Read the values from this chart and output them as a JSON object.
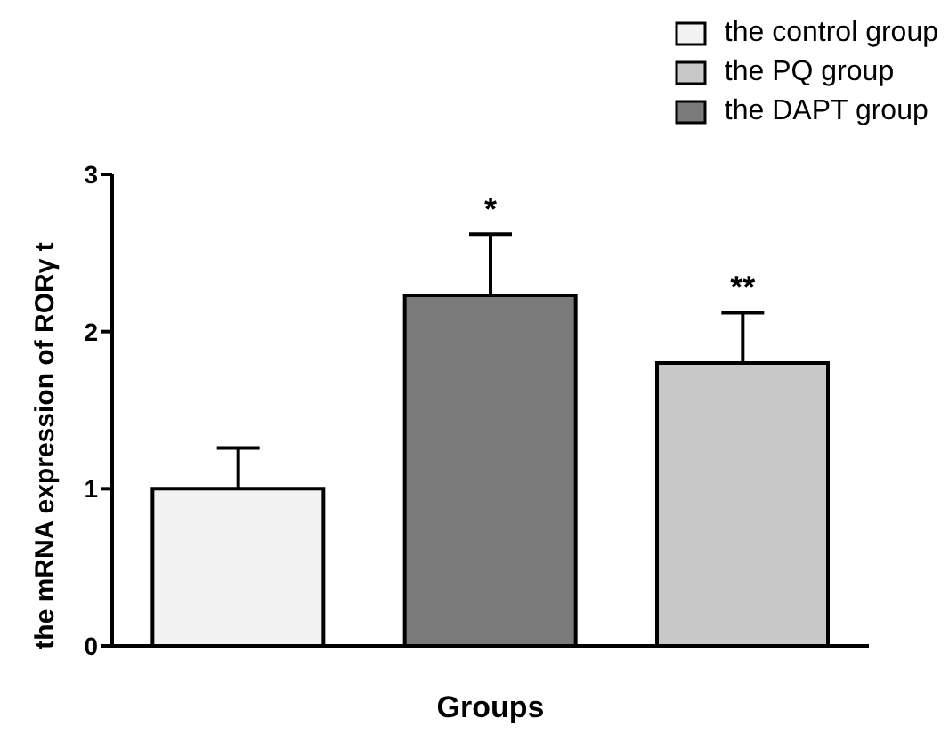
{
  "chart_data": {
    "type": "bar",
    "xlabel": "Groups",
    "ylabel": "the mRNA expression of RORγ t",
    "categories": [
      null,
      null,
      null
    ],
    "series": [
      {
        "name": "the control group",
        "color": "#f2f2f2",
        "values": [
          1.0,
          null,
          null
        ],
        "errors": [
          [
            1.0,
            1.26
          ],
          null,
          null
        ]
      },
      {
        "name": "the PQ group",
        "color": "#c8c8c8",
        "values": [
          null,
          null,
          1.8
        ],
        "errors": [
          null,
          null,
          [
            1.8,
            2.12
          ]
        ]
      },
      {
        "name": "the DAPT group",
        "color": "#7a7a7a",
        "values": [
          null,
          2.23,
          null
        ],
        "errors": [
          null,
          [
            2.23,
            2.62
          ],
          null
        ]
      }
    ],
    "ylim": [
      0,
      3
    ],
    "yticks": [
      0,
      1,
      2,
      3
    ],
    "grid": false,
    "legend": "top right",
    "tick_labels": "y",
    "annotations": [
      "*",
      "**"
    ]
  }
}
